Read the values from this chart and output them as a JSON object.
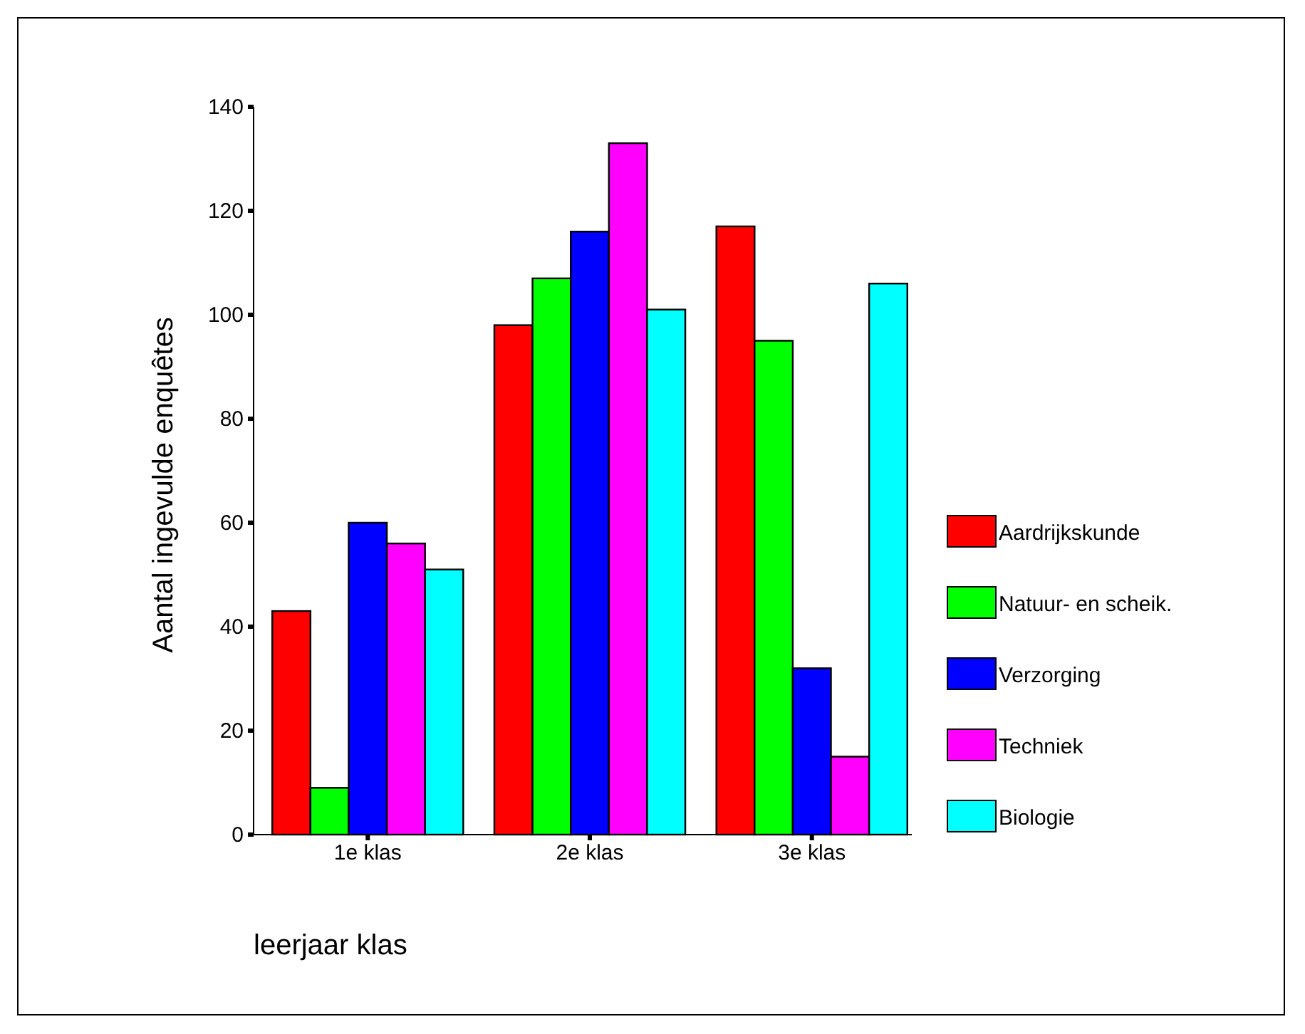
{
  "chart_data": {
    "type": "bar",
    "xlabel": "leerjaar klas",
    "ylabel": "Aantal ingevulde enquêtes",
    "categories": [
      "1e klas",
      "2e klas",
      "3e klas"
    ],
    "series": [
      {
        "name": "Aardrijkskunde",
        "color": "#ff0000",
        "values": [
          43,
          98,
          117
        ]
      },
      {
        "name": "Natuur- en scheik.",
        "color": "#00ff00",
        "values": [
          9,
          107,
          95
        ]
      },
      {
        "name": "Verzorging",
        "color": "#0000ff",
        "values": [
          60,
          116,
          32
        ]
      },
      {
        "name": "Techniek",
        "color": "#ff00ff",
        "values": [
          56,
          133,
          15
        ]
      },
      {
        "name": "Biologie",
        "color": "#00ffff",
        "values": [
          51,
          101,
          106
        ]
      }
    ],
    "ylim": [
      0,
      140
    ],
    "yticks": [
      0,
      20,
      40,
      60,
      80,
      100,
      120,
      140
    ],
    "legend": "right"
  }
}
